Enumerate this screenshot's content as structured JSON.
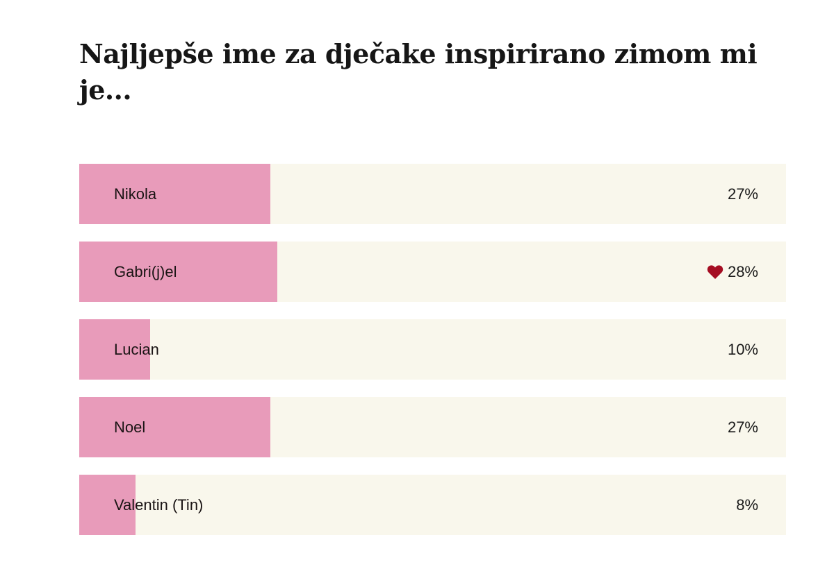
{
  "poll": {
    "title": "Najljepše ime za dječake inspirirano zimom mi je...",
    "options": [
      {
        "label": "Nikola",
        "percent_label": "27%",
        "percent": 27,
        "selected": false
      },
      {
        "label": "Gabri(j)el",
        "percent_label": "28%",
        "percent": 28,
        "selected": true
      },
      {
        "label": "Lucian",
        "percent_label": "10%",
        "percent": 10,
        "selected": false
      },
      {
        "label": "Noel",
        "percent_label": "27%",
        "percent": 27,
        "selected": false
      },
      {
        "label": "Valentin (Tin)",
        "percent_label": "8%",
        "percent": 8,
        "selected": false
      }
    ],
    "selected_icon": "heart-icon",
    "colors": {
      "fill": "#e89bba",
      "track": "#f9f7ec",
      "heart": "#a50d22",
      "text": "#1a1414"
    }
  },
  "chart_data": {
    "type": "bar",
    "orientation": "horizontal",
    "title": "Najljepše ime za dječake inspirirano zimom mi je...",
    "categories": [
      "Nikola",
      "Gabri(j)el",
      "Lucian",
      "Noel",
      "Valentin (Tin)"
    ],
    "values": [
      27,
      28,
      10,
      27,
      8
    ],
    "unit": "%",
    "xlabel": "",
    "ylabel": "",
    "xlim": [
      0,
      100
    ],
    "grid": false,
    "legend": null,
    "annotations": [
      "heart marker on Gabri(j)el (user's vote)"
    ]
  }
}
